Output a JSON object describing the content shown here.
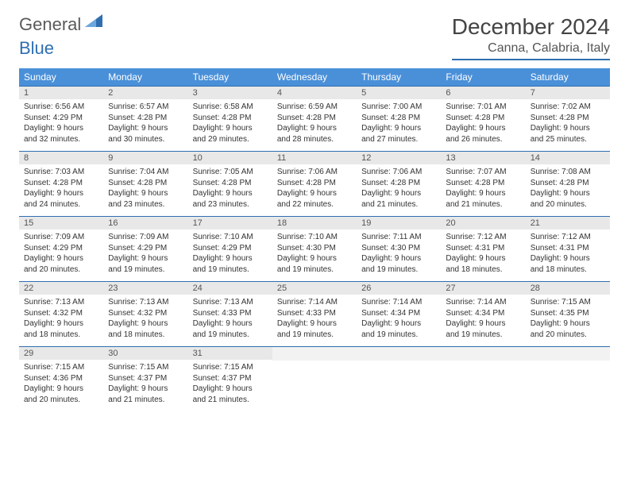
{
  "logo": {
    "text1": "General",
    "text2": "Blue"
  },
  "title": "December 2024",
  "location": "Canna, Calabria, Italy",
  "colors": {
    "header_bg": "#4a90d9",
    "border": "#2f6fb0",
    "daynum_bg": "#e8e8e8",
    "empty_bg": "#f2f2f2"
  },
  "day_headers": [
    "Sunday",
    "Monday",
    "Tuesday",
    "Wednesday",
    "Thursday",
    "Friday",
    "Saturday"
  ],
  "weeks": [
    [
      {
        "n": "1",
        "sunrise": "6:56 AM",
        "sunset": "4:29 PM",
        "daylight": "9 hours and 32 minutes."
      },
      {
        "n": "2",
        "sunrise": "6:57 AM",
        "sunset": "4:28 PM",
        "daylight": "9 hours and 30 minutes."
      },
      {
        "n": "3",
        "sunrise": "6:58 AM",
        "sunset": "4:28 PM",
        "daylight": "9 hours and 29 minutes."
      },
      {
        "n": "4",
        "sunrise": "6:59 AM",
        "sunset": "4:28 PM",
        "daylight": "9 hours and 28 minutes."
      },
      {
        "n": "5",
        "sunrise": "7:00 AM",
        "sunset": "4:28 PM",
        "daylight": "9 hours and 27 minutes."
      },
      {
        "n": "6",
        "sunrise": "7:01 AM",
        "sunset": "4:28 PM",
        "daylight": "9 hours and 26 minutes."
      },
      {
        "n": "7",
        "sunrise": "7:02 AM",
        "sunset": "4:28 PM",
        "daylight": "9 hours and 25 minutes."
      }
    ],
    [
      {
        "n": "8",
        "sunrise": "7:03 AM",
        "sunset": "4:28 PM",
        "daylight": "9 hours and 24 minutes."
      },
      {
        "n": "9",
        "sunrise": "7:04 AM",
        "sunset": "4:28 PM",
        "daylight": "9 hours and 23 minutes."
      },
      {
        "n": "10",
        "sunrise": "7:05 AM",
        "sunset": "4:28 PM",
        "daylight": "9 hours and 23 minutes."
      },
      {
        "n": "11",
        "sunrise": "7:06 AM",
        "sunset": "4:28 PM",
        "daylight": "9 hours and 22 minutes."
      },
      {
        "n": "12",
        "sunrise": "7:06 AM",
        "sunset": "4:28 PM",
        "daylight": "9 hours and 21 minutes."
      },
      {
        "n": "13",
        "sunrise": "7:07 AM",
        "sunset": "4:28 PM",
        "daylight": "9 hours and 21 minutes."
      },
      {
        "n": "14",
        "sunrise": "7:08 AM",
        "sunset": "4:28 PM",
        "daylight": "9 hours and 20 minutes."
      }
    ],
    [
      {
        "n": "15",
        "sunrise": "7:09 AM",
        "sunset": "4:29 PM",
        "daylight": "9 hours and 20 minutes."
      },
      {
        "n": "16",
        "sunrise": "7:09 AM",
        "sunset": "4:29 PM",
        "daylight": "9 hours and 19 minutes."
      },
      {
        "n": "17",
        "sunrise": "7:10 AM",
        "sunset": "4:29 PM",
        "daylight": "9 hours and 19 minutes."
      },
      {
        "n": "18",
        "sunrise": "7:10 AM",
        "sunset": "4:30 PM",
        "daylight": "9 hours and 19 minutes."
      },
      {
        "n": "19",
        "sunrise": "7:11 AM",
        "sunset": "4:30 PM",
        "daylight": "9 hours and 19 minutes."
      },
      {
        "n": "20",
        "sunrise": "7:12 AM",
        "sunset": "4:31 PM",
        "daylight": "9 hours and 18 minutes."
      },
      {
        "n": "21",
        "sunrise": "7:12 AM",
        "sunset": "4:31 PM",
        "daylight": "9 hours and 18 minutes."
      }
    ],
    [
      {
        "n": "22",
        "sunrise": "7:13 AM",
        "sunset": "4:32 PM",
        "daylight": "9 hours and 18 minutes."
      },
      {
        "n": "23",
        "sunrise": "7:13 AM",
        "sunset": "4:32 PM",
        "daylight": "9 hours and 18 minutes."
      },
      {
        "n": "24",
        "sunrise": "7:13 AM",
        "sunset": "4:33 PM",
        "daylight": "9 hours and 19 minutes."
      },
      {
        "n": "25",
        "sunrise": "7:14 AM",
        "sunset": "4:33 PM",
        "daylight": "9 hours and 19 minutes."
      },
      {
        "n": "26",
        "sunrise": "7:14 AM",
        "sunset": "4:34 PM",
        "daylight": "9 hours and 19 minutes."
      },
      {
        "n": "27",
        "sunrise": "7:14 AM",
        "sunset": "4:34 PM",
        "daylight": "9 hours and 19 minutes."
      },
      {
        "n": "28",
        "sunrise": "7:15 AM",
        "sunset": "4:35 PM",
        "daylight": "9 hours and 20 minutes."
      }
    ],
    [
      {
        "n": "29",
        "sunrise": "7:15 AM",
        "sunset": "4:36 PM",
        "daylight": "9 hours and 20 minutes."
      },
      {
        "n": "30",
        "sunrise": "7:15 AM",
        "sunset": "4:37 PM",
        "daylight": "9 hours and 21 minutes."
      },
      {
        "n": "31",
        "sunrise": "7:15 AM",
        "sunset": "4:37 PM",
        "daylight": "9 hours and 21 minutes."
      },
      null,
      null,
      null,
      null
    ]
  ]
}
